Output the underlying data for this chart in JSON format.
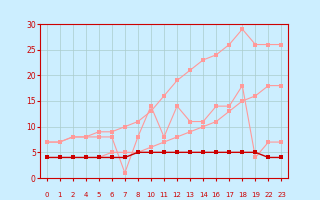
{
  "bg_color": "#cceeff",
  "grid_color": "#aacccc",
  "x_labels": [
    "0",
    "1",
    "2",
    "4",
    "5",
    "6",
    "7",
    "8",
    "10",
    "11",
    "12",
    "13",
    "14",
    "16",
    "17",
    "18",
    "19",
    "22",
    "23"
  ],
  "n_points": 19,
  "avg_wind": [
    4,
    4,
    4,
    4,
    4,
    4,
    4,
    5,
    5,
    5,
    5,
    5,
    5,
    5,
    5,
    5,
    5,
    4,
    4
  ],
  "gust_wind": [
    7,
    7,
    8,
    8,
    8,
    8,
    1,
    8,
    14,
    8,
    14,
    11,
    11,
    14,
    14,
    18,
    4,
    7,
    7
  ],
  "trend_avg": [
    4,
    4,
    4,
    4,
    4,
    5,
    5,
    5,
    6,
    7,
    8,
    9,
    10,
    11,
    13,
    15,
    16,
    18,
    18
  ],
  "trend_gust": [
    7,
    7,
    8,
    8,
    9,
    9,
    10,
    11,
    13,
    16,
    19,
    21,
    23,
    24,
    26,
    29,
    26,
    26,
    26
  ],
  "ylim": [
    0,
    30
  ],
  "yticks": [
    0,
    5,
    10,
    15,
    20,
    25,
    30
  ],
  "dark_red": "#cc0000",
  "light_red": "#ff9999",
  "axis_color": "#cc0000",
  "tick_color": "#cc0000"
}
